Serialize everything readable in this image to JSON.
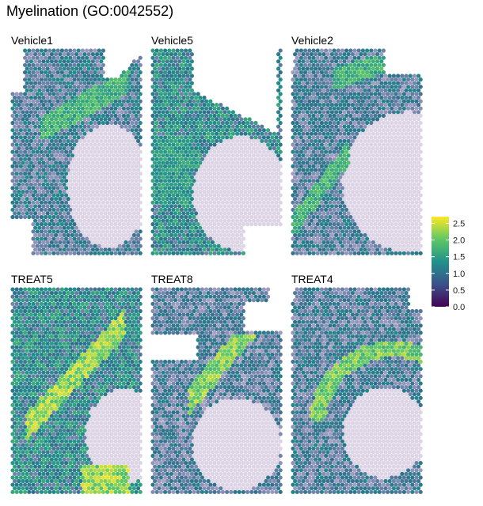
{
  "title": "Myelination (GO:0042552)",
  "colors": {
    "viridis": [
      "#440154",
      "#3b528b",
      "#21918c",
      "#5ec962",
      "#fde725"
    ],
    "background_spot": "#ddd5e6"
  },
  "chart_data": {
    "type": "scatter",
    "subtype": "spatial-transcriptomics-faceted",
    "title": "Myelination (GO:0042552)",
    "legend": {
      "position": "right",
      "min": 0.0,
      "max": 2.7,
      "ticks": [
        0.0,
        0.5,
        1.0,
        1.5,
        2.0,
        2.5
      ]
    },
    "panels": [
      {
        "name": "Vehicle1",
        "level": {
          "background": 0.15,
          "tissue": 1.05,
          "band": 1.9
        }
      },
      {
        "name": "Vehicle5",
        "level": {
          "background": 0.2,
          "tissue": 1.35,
          "band": 1.6
        }
      },
      {
        "name": "Vehicle2",
        "level": {
          "background": 0.15,
          "tissue": 1.0,
          "band": 1.9
        }
      },
      {
        "name": "TREAT5",
        "level": {
          "background": 0.2,
          "tissue": 1.35,
          "band": 2.5
        }
      },
      {
        "name": "TREAT8",
        "level": {
          "background": 0.15,
          "tissue": 0.95,
          "band": 2.4
        }
      },
      {
        "name": "TREAT4",
        "level": {
          "background": 0.2,
          "tissue": 1.0,
          "band": 2.3
        }
      }
    ]
  }
}
